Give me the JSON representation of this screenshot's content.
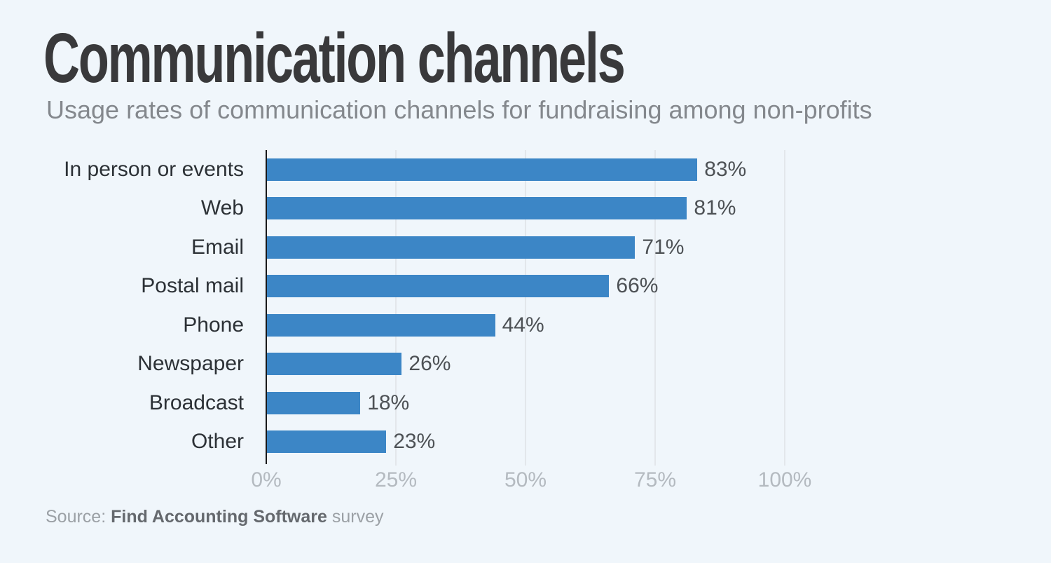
{
  "header": {
    "title": "Communication channels",
    "subtitle": "Usage rates of communication channels for fundraising among non-profits"
  },
  "chart_data": {
    "type": "bar",
    "orientation": "horizontal",
    "title": "Communication channels",
    "subtitle": "Usage rates of communication channels for fundraising among non-profits",
    "categories": [
      "In person or events",
      "Web",
      "Email",
      "Postal mail",
      "Phone",
      "Newspaper",
      "Broadcast",
      "Other"
    ],
    "values": [
      83,
      81,
      71,
      66,
      44,
      26,
      18,
      23
    ],
    "value_labels": [
      "83%",
      "81%",
      "71%",
      "66%",
      "44%",
      "26%",
      "18%",
      "23%"
    ],
    "x_ticks": [
      {
        "value": 0,
        "label": "0%"
      },
      {
        "value": 25,
        "label": "25%"
      },
      {
        "value": 50,
        "label": "50%"
      },
      {
        "value": 75,
        "label": "75%"
      },
      {
        "value": 100,
        "label": "100%"
      }
    ],
    "xlim": [
      0,
      100
    ],
    "xlabel": "",
    "ylabel": "",
    "grid": true,
    "legend": false,
    "colors": {
      "bar": "#3c86c6",
      "background": "#f0f6fb",
      "gridline": "#e3e7eb",
      "axis_line": "#17181a",
      "tick_label": "#b4bac0",
      "value_label": "#4d5155",
      "category_label": "#2c3136"
    }
  },
  "source": {
    "prefix": "Source: ",
    "name": "Find Accounting Software",
    "suffix": " survey"
  }
}
